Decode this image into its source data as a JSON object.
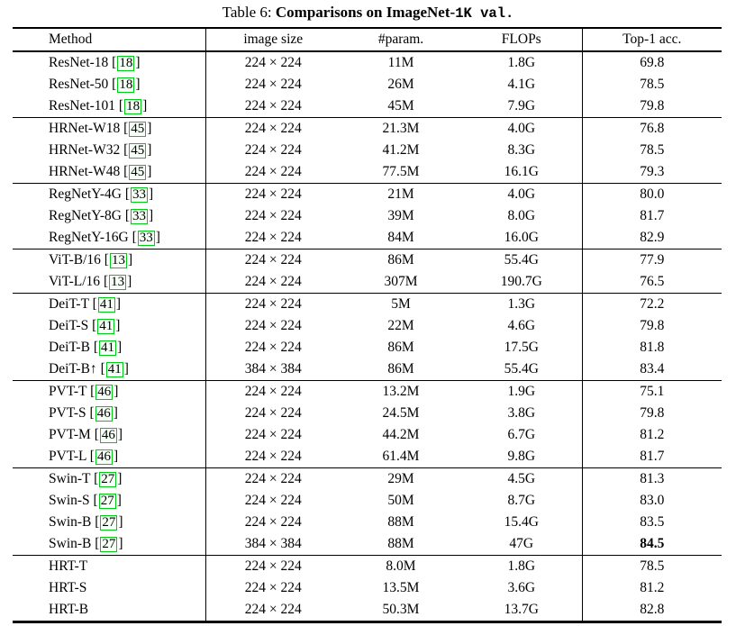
{
  "title": {
    "part1": "Table 6: ",
    "part2": "Comparisons on ImageNet-",
    "part3": "1K",
    "part4": " val."
  },
  "columns": [
    "Method",
    "image size",
    "#param.",
    "FLOPs",
    "Top-1 acc."
  ],
  "accent_green": "#00cc16",
  "table": {
    "groups": [
      {
        "rows": [
          {
            "method": "ResNet-18",
            "cite": "18",
            "size": "224 × 224",
            "params": "11M",
            "flops": "1.8G",
            "acc": "69.8",
            "bold_acc": false
          },
          {
            "method": "ResNet-50",
            "cite": "18",
            "size": "224 × 224",
            "params": "26M",
            "flops": "4.1G",
            "acc": "78.5",
            "bold_acc": false
          },
          {
            "method": "ResNet-101",
            "cite": "18",
            "size": "224 × 224",
            "params": "45M",
            "flops": "7.9G",
            "acc": "79.8",
            "bold_acc": false
          }
        ]
      },
      {
        "rows": [
          {
            "method": "HRNet-W18",
            "cite": "45",
            "size": "224 × 224",
            "params": "21.3M",
            "flops": "4.0G",
            "acc": "76.8",
            "bold_acc": false
          },
          {
            "method": "HRNet-W32",
            "cite": "45",
            "size": "224 × 224",
            "params": "41.2M",
            "flops": "8.3G",
            "acc": "78.5",
            "bold_acc": false
          },
          {
            "method": "HRNet-W48",
            "cite": "45",
            "size": "224 × 224",
            "params": "77.5M",
            "flops": "16.1G",
            "acc": "79.3",
            "bold_acc": false
          }
        ]
      },
      {
        "rows": [
          {
            "method": "RegNetY-4G",
            "cite": "33",
            "size": "224 × 224",
            "params": "21M",
            "flops": "4.0G",
            "acc": "80.0",
            "bold_acc": false
          },
          {
            "method": "RegNetY-8G",
            "cite": "33",
            "size": "224 × 224",
            "params": "39M",
            "flops": "8.0G",
            "acc": "81.7",
            "bold_acc": false
          },
          {
            "method": "RegNetY-16G",
            "cite": "33",
            "size": "224 × 224",
            "params": "84M",
            "flops": "16.0G",
            "acc": "82.9",
            "bold_acc": false
          }
        ]
      },
      {
        "rows": [
          {
            "method": "ViT-B/16",
            "cite": "13",
            "size": "224 × 224",
            "params": "86M",
            "flops": "55.4G",
            "acc": "77.9",
            "bold_acc": false
          },
          {
            "method": "ViT-L/16",
            "cite": "13",
            "size": "224 × 224",
            "params": "307M",
            "flops": "190.7G",
            "acc": "76.5",
            "bold_acc": false
          }
        ]
      },
      {
        "rows": [
          {
            "method": "DeiT-T",
            "cite": "41",
            "size": "224 × 224",
            "params": "5M",
            "flops": "1.3G",
            "acc": "72.2",
            "bold_acc": false
          },
          {
            "method": "DeiT-S",
            "cite": "41",
            "size": "224 × 224",
            "params": "22M",
            "flops": "4.6G",
            "acc": "79.8",
            "bold_acc": false
          },
          {
            "method": "DeiT-B",
            "cite": "41",
            "size": "224 × 224",
            "params": "86M",
            "flops": "17.5G",
            "acc": "81.8",
            "bold_acc": false
          },
          {
            "method": "DeiT-B↑",
            "cite": "41",
            "size": "384 × 384",
            "params": "86M",
            "flops": "55.4G",
            "acc": "83.4",
            "bold_acc": false
          }
        ]
      },
      {
        "rows": [
          {
            "method": "PVT-T",
            "cite": "46",
            "size": "224 × 224",
            "params": "13.2M",
            "flops": "1.9G",
            "acc": "75.1",
            "bold_acc": false
          },
          {
            "method": "PVT-S",
            "cite": "46",
            "size": "224 × 224",
            "params": "24.5M",
            "flops": "3.8G",
            "acc": "79.8",
            "bold_acc": false
          },
          {
            "method": "PVT-M",
            "cite": "46",
            "size": "224 × 224",
            "params": "44.2M",
            "flops": "6.7G",
            "acc": "81.2",
            "bold_acc": false
          },
          {
            "method": "PVT-L",
            "cite": "46",
            "size": "224 × 224",
            "params": "61.4M",
            "flops": "9.8G",
            "acc": "81.7",
            "bold_acc": false
          }
        ]
      },
      {
        "rows": [
          {
            "method": "Swin-T",
            "cite": "27",
            "size": "224 × 224",
            "params": "29M",
            "flops": "4.5G",
            "acc": "81.3",
            "bold_acc": false
          },
          {
            "method": "Swin-S",
            "cite": "27",
            "size": "224 × 224",
            "params": "50M",
            "flops": "8.7G",
            "acc": "83.0",
            "bold_acc": false
          },
          {
            "method": "Swin-B",
            "cite": "27",
            "size": "224 × 224",
            "params": "88M",
            "flops": "15.4G",
            "acc": "83.5",
            "bold_acc": false
          },
          {
            "method": "Swin-B",
            "cite": "27",
            "size": "384 × 384",
            "params": "88M",
            "flops": "47G",
            "acc": "84.5",
            "bold_acc": true
          }
        ]
      },
      {
        "rows": [
          {
            "method": "HRT-T",
            "cite": "",
            "size": "224 × 224",
            "params": "8.0M",
            "flops": "1.8G",
            "acc": "78.5",
            "bold_acc": false
          },
          {
            "method": "HRT-S",
            "cite": "",
            "size": "224 × 224",
            "params": "13.5M",
            "flops": "3.6G",
            "acc": "81.2",
            "bold_acc": false
          },
          {
            "method": "HRT-B",
            "cite": "",
            "size": "224 × 224",
            "params": "50.3M",
            "flops": "13.7G",
            "acc": "82.8",
            "bold_acc": false
          }
        ]
      }
    ]
  }
}
